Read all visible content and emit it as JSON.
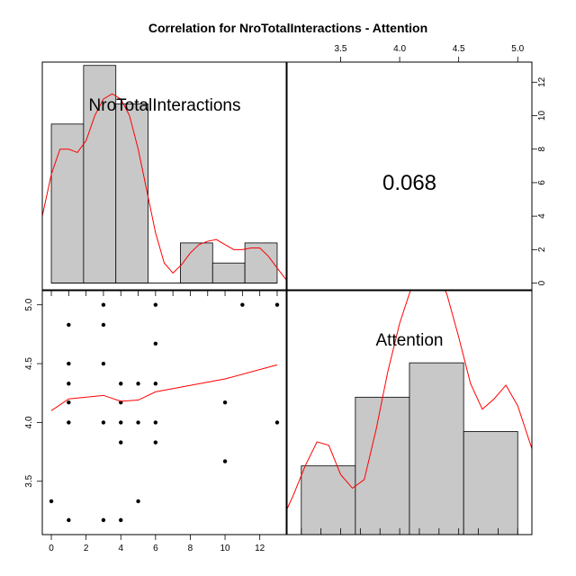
{
  "chart_data": {
    "type": "scatter",
    "title": "Correlation  for NroTotalInteractions - Attention",
    "variables": [
      "NroTotalInteractions",
      "Attention"
    ],
    "correlation": "0.068",
    "ticks": {
      "bottom": [
        "0",
        "2",
        "4",
        "6",
        "8",
        "10",
        "12"
      ],
      "top": [
        "3.5",
        "4.0",
        "4.5",
        "5.0"
      ],
      "left": [
        "3.5",
        "4.0",
        "4.5",
        "5.0"
      ],
      "right": [
        "0",
        "2",
        "4",
        "6",
        "8",
        "10",
        "12"
      ]
    },
    "axis_ranges": {
      "nro": [
        -0.52,
        13.52
      ],
      "attention": [
        3.0467,
        5.12
      ],
      "count_nro_hist": [
        -0.4,
        13.2
      ],
      "count_att_hist": [
        0,
        14.2
      ]
    },
    "histogram_nro": {
      "breaks": [
        0,
        1.857,
        3.714,
        5.571,
        7.429,
        9.286,
        11.143,
        13
      ],
      "counts": [
        9.5,
        13,
        10.7,
        0,
        2.4,
        1.2,
        2.4
      ]
    },
    "histogram_attention": {
      "breaks": [
        3.167,
        3.625,
        4.083,
        4.542,
        5.0
      ],
      "counts": [
        4,
        8,
        10,
        6
      ]
    },
    "density_nro": [
      [
        -0.52,
        4
      ],
      [
        0,
        6.5
      ],
      [
        0.5,
        8
      ],
      [
        1,
        8
      ],
      [
        1.5,
        7.8
      ],
      [
        2,
        8.5
      ],
      [
        2.5,
        10
      ],
      [
        3,
        11
      ],
      [
        3.5,
        11.3
      ],
      [
        4,
        11
      ],
      [
        4.5,
        10
      ],
      [
        5,
        8
      ],
      [
        5.5,
        5.5
      ],
      [
        6,
        3
      ],
      [
        6.5,
        1.2
      ],
      [
        7,
        0.6
      ],
      [
        7.5,
        1.1
      ],
      [
        8,
        1.8
      ],
      [
        8.5,
        2.3
      ],
      [
        9,
        2.5
      ],
      [
        9.5,
        2.6
      ],
      [
        10,
        2.3
      ],
      [
        10.5,
        2
      ],
      [
        11,
        2
      ],
      [
        11.5,
        2.1
      ],
      [
        12,
        2.1
      ],
      [
        12.5,
        1.6
      ],
      [
        13,
        0.9
      ],
      [
        13.52,
        0.2
      ]
    ],
    "density_attention": [
      [
        3.0467,
        1.5
      ],
      [
        3.1,
        2.3
      ],
      [
        3.2,
        4.0
      ],
      [
        3.3,
        5.4
      ],
      [
        3.4,
        5.2
      ],
      [
        3.5,
        3.5
      ],
      [
        3.6,
        2.7
      ],
      [
        3.7,
        3.2
      ],
      [
        3.8,
        6.1
      ],
      [
        3.9,
        9.5
      ],
      [
        4.0,
        12.3
      ],
      [
        4.1,
        14.4
      ],
      [
        4.2,
        15.5
      ],
      [
        4.3,
        15.5
      ],
      [
        4.4,
        14.0
      ],
      [
        4.5,
        11.5
      ],
      [
        4.6,
        8.8
      ],
      [
        4.7,
        7.3
      ],
      [
        4.8,
        7.9
      ],
      [
        4.9,
        8.7
      ],
      [
        5.0,
        7.5
      ],
      [
        5.12,
        5.0
      ]
    ],
    "loess": [
      [
        0,
        4.1
      ],
      [
        1,
        4.2
      ],
      [
        3,
        4.23
      ],
      [
        4,
        4.18
      ],
      [
        5,
        4.19
      ],
      [
        6,
        4.26
      ],
      [
        10,
        4.37
      ],
      [
        13,
        4.49
      ]
    ],
    "points": [
      [
        0,
        3.33
      ],
      [
        1,
        3.17
      ],
      [
        1,
        4.0
      ],
      [
        1,
        4.17
      ],
      [
        1,
        4.33
      ],
      [
        1,
        4.5
      ],
      [
        1,
        4.83
      ],
      [
        3,
        3.17
      ],
      [
        3,
        4.0
      ],
      [
        3,
        4.5
      ],
      [
        3,
        4.83
      ],
      [
        3,
        5.0
      ],
      [
        4,
        3.17
      ],
      [
        4,
        3.83
      ],
      [
        4,
        4.0
      ],
      [
        4,
        4.17
      ],
      [
        4,
        4.33
      ],
      [
        5,
        3.33
      ],
      [
        5,
        4.0
      ],
      [
        5,
        4.33
      ],
      [
        6,
        3.83
      ],
      [
        6,
        4.0
      ],
      [
        6,
        4.33
      ],
      [
        6,
        4.67
      ],
      [
        6,
        5.0
      ],
      [
        10,
        3.67
      ],
      [
        10,
        4.17
      ],
      [
        11,
        5.0
      ],
      [
        13,
        4.0
      ],
      [
        13,
        5.0
      ]
    ]
  }
}
